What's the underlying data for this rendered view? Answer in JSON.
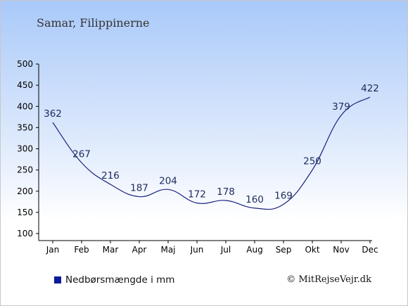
{
  "chart_data": {
    "type": "line",
    "title": "Samar, Filippinerne",
    "categories": [
      "Jan",
      "Feb",
      "Mar",
      "Apr",
      "Maj",
      "Jun",
      "Jul",
      "Aug",
      "Sep",
      "Okt",
      "Nov",
      "Dec"
    ],
    "series": [
      {
        "name": "Nedbørsmængde i mm",
        "values": [
          362,
          267,
          216,
          187,
          204,
          172,
          178,
          160,
          169,
          250,
          379,
          422
        ]
      }
    ],
    "yticks": [
      100,
      150,
      200,
      250,
      300,
      350,
      400,
      450,
      500
    ],
    "ylim": [
      100,
      500
    ],
    "line_color": "#1a237e",
    "legend_color": "#0a1a9e",
    "grid": false,
    "legend_position": "bottom-left"
  },
  "legend": {
    "label": "Nedbørsmængde i mm"
  },
  "copyright": "© MitRejseVejr.dk"
}
